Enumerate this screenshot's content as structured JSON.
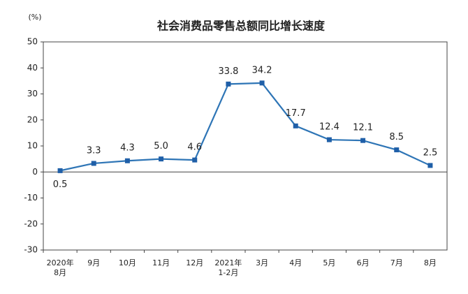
{
  "chart_data": {
    "type": "line",
    "title": "社会消费品零售总额同比增长速度",
    "y_label": "(%)",
    "categories": [
      "2020年\n8月",
      "9月",
      "10月",
      "11月",
      "12月",
      "2021年\n1-2月",
      "3月",
      "4月",
      "5月",
      "6月",
      "7月",
      "8月"
    ],
    "series": [
      {
        "name": "同比增长速度",
        "color": "#2e75b6",
        "values": [
          0.5,
          3.3,
          4.3,
          5.0,
          4.6,
          33.8,
          34.2,
          17.7,
          12.4,
          12.1,
          8.5,
          2.5
        ],
        "value_labels": [
          "0.5",
          "3.3",
          "4.3",
          "5.0",
          "4.6",
          "33.8",
          "34.2",
          "17.7",
          "12.4",
          "12.1",
          "8.5",
          "2.5"
        ]
      }
    ],
    "ylim": [
      -30,
      50
    ],
    "yticks": [
      -30,
      -20,
      -10,
      0,
      10,
      20,
      30,
      40,
      50
    ],
    "legend": false
  }
}
